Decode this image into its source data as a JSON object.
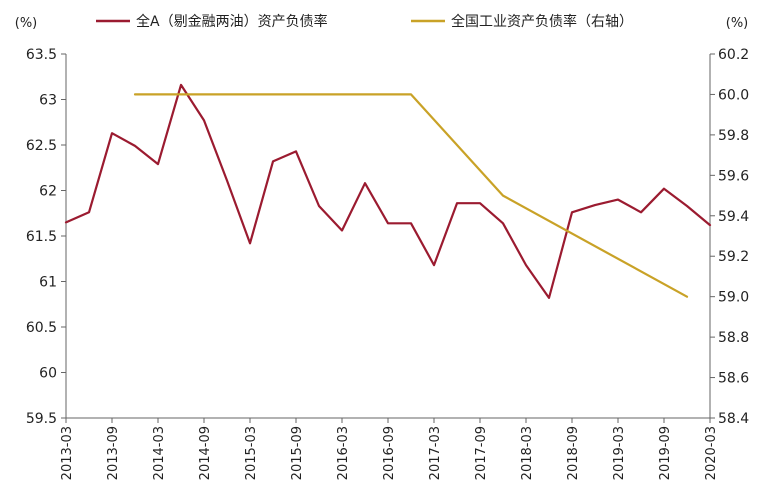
{
  "chart_data": {
    "type": "line",
    "title": "",
    "legend_position": "top",
    "y_unit_left": "(%)",
    "y_unit_right": "(%)",
    "x_labels": [
      "2013-03",
      "2013-09",
      "2014-03",
      "2014-09",
      "2015-03",
      "2015-09",
      "2016-03",
      "2016-09",
      "2017-03",
      "2017-09",
      "2018-03",
      "2018-09",
      "2019-03",
      "2019-09",
      "2020-03"
    ],
    "ylim_left": [
      59.5,
      63.5
    ],
    "yticks_left": [
      "59.5",
      "60",
      "60.5",
      "61",
      "61.5",
      "62",
      "62.5",
      "63",
      "63.5"
    ],
    "ylim_right": [
      58.4,
      60.2
    ],
    "yticks_right": [
      "58.4",
      "58.6",
      "58.8",
      "59.0",
      "59.2",
      "59.4",
      "59.6",
      "59.8",
      "60.0",
      "60.2"
    ],
    "series": [
      {
        "name": "全A（剔金融两油）资产负债率",
        "axis": "left",
        "color": "#9b1b30",
        "x": [
          0,
          0.5,
          1,
          1.5,
          2,
          2.5,
          3,
          3.5,
          4,
          4.5,
          5,
          5.5,
          6,
          6.5,
          7,
          7.5,
          8,
          8.5,
          9,
          9.5,
          10,
          10.5,
          11,
          11.5,
          12,
          12.5,
          13,
          13.5,
          14
        ],
        "values": [
          61.65,
          61.76,
          62.63,
          62.49,
          62.29,
          63.16,
          62.77,
          62.11,
          61.42,
          62.32,
          62.43,
          61.83,
          61.56,
          62.08,
          61.64,
          61.64,
          61.18,
          61.86,
          61.86,
          61.64,
          61.18,
          60.82,
          61.76,
          61.84,
          61.9,
          61.76,
          62.02,
          61.83,
          61.62
        ]
      },
      {
        "name": "全国工业资产负债率（右轴）",
        "axis": "right",
        "color": "#c9a227",
        "x": [
          1.5,
          7.5,
          9.5,
          13.5
        ],
        "values": [
          60.0,
          60.0,
          59.5,
          59.0
        ]
      }
    ]
  }
}
